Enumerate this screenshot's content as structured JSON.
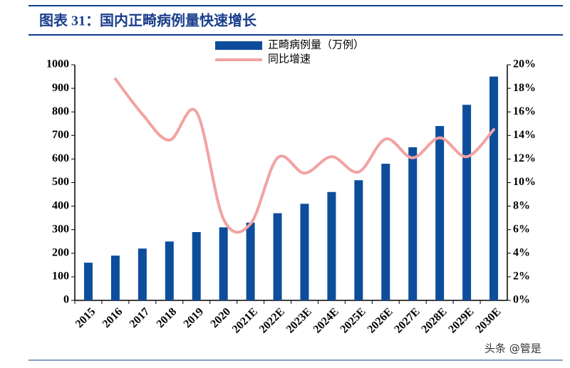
{
  "chart_data": {
    "type": "bar-line",
    "title": "图表 31：国内正畸病例量快速增长",
    "categories": [
      "2015",
      "2016",
      "2017",
      "2018",
      "2019",
      "2020",
      "2021E",
      "2022E",
      "2023E",
      "2024E",
      "2025E",
      "2026E",
      "2027E",
      "2028E",
      "2029E",
      "2030E"
    ],
    "series": [
      {
        "name": "正畸病例量（万例）",
        "type": "bar",
        "color": "#0d4d9c",
        "values": [
          160,
          190,
          220,
          250,
          290,
          310,
          330,
          370,
          410,
          460,
          510,
          580,
          650,
          740,
          830,
          950
        ]
      },
      {
        "name": "同比增速",
        "type": "line",
        "axis": "y2",
        "color": "#f2a2a2",
        "values": [
          null,
          18.8,
          15.8,
          13.6,
          16.0,
          6.9,
          6.5,
          12.1,
          10.8,
          12.2,
          10.9,
          13.7,
          12.1,
          13.8,
          12.2,
          14.5
        ]
      }
    ],
    "ylim": [
      0,
      1000
    ],
    "yticks": [
      0,
      100,
      200,
      300,
      400,
      500,
      600,
      700,
      800,
      900,
      1000
    ],
    "y2lim": [
      0,
      20
    ],
    "y2ticks": [
      {
        "value": 0,
        "label": "0%"
      },
      {
        "value": 2,
        "label": "2%"
      },
      {
        "value": 4,
        "label": "4%"
      },
      {
        "value": 6,
        "label": "6%"
      },
      {
        "value": 8,
        "label": "8%"
      },
      {
        "value": 10,
        "label": "10%"
      },
      {
        "value": 12,
        "label": "12%"
      },
      {
        "value": 14,
        "label": "14%"
      },
      {
        "value": 16,
        "label": "16%"
      },
      {
        "value": 18,
        "label": "18%"
      },
      {
        "value": 20,
        "label": "20%"
      }
    ],
    "legend": "top",
    "watermark": "头条 @管是"
  }
}
